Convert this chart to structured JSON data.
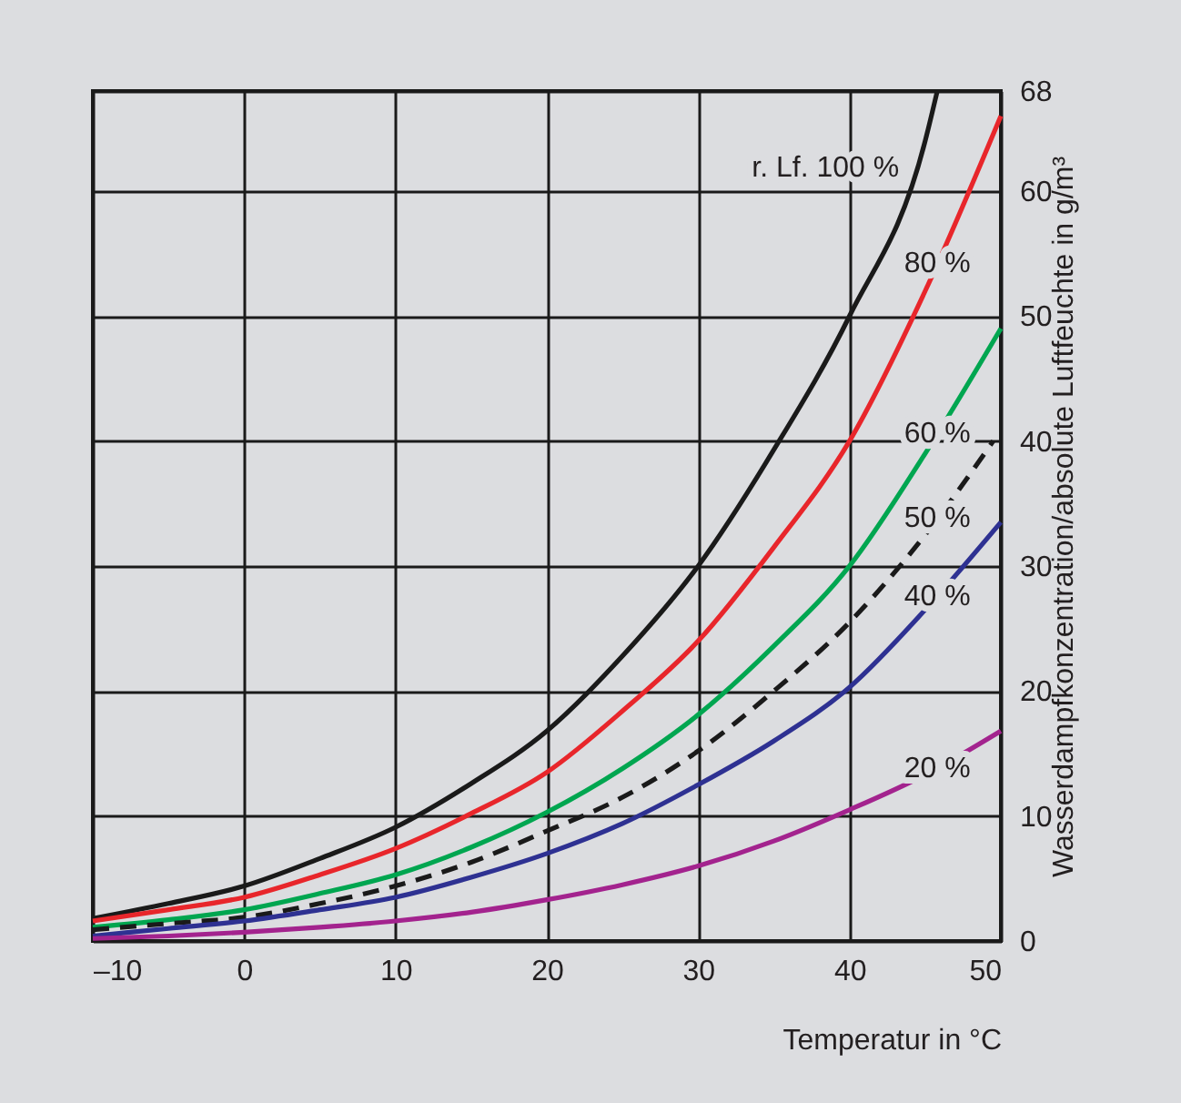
{
  "chart_data": {
    "type": "line",
    "xlabel": "Temperatur in °C",
    "ylabel": "Wasserdampfkonzentration/absolute Luftfeuchte in g/m³",
    "x": [
      -10,
      -5,
      0,
      5,
      10,
      15,
      20,
      25,
      30,
      35,
      40,
      45,
      50
    ],
    "xlim": [
      -10,
      50
    ],
    "xticks": [
      {
        "value": -10,
        "label": "–10"
      },
      0,
      10,
      20,
      30,
      40,
      50
    ],
    "ylim": [
      0,
      68
    ],
    "yticks": [
      0,
      10,
      20,
      30,
      40,
      50,
      60,
      68
    ],
    "grid": true,
    "line_style": "solid",
    "series": [
      {
        "name": "r. Lf. 100 %",
        "color": "#1a1a1a",
        "x": [
          -10,
          -5,
          0,
          5,
          10,
          15,
          20,
          25,
          30,
          35,
          40,
          45,
          45.8
        ],
        "values": [
          1.8,
          3.0,
          4.4,
          6.6,
          9.1,
          12.6,
          16.8,
          22.8,
          30,
          39.3,
          50,
          64,
          68
        ]
      },
      {
        "name": "80 %",
        "color": "#e8262b",
        "values": [
          1.6,
          2.5,
          3.5,
          5.3,
          7.4,
          10.2,
          13.5,
          18.4,
          24,
          31.5,
          40,
          52,
          66
        ]
      },
      {
        "name": "60 %",
        "color": "#00a650",
        "values": [
          1.1,
          1.7,
          2.5,
          3.8,
          5.3,
          7.5,
          10.3,
          13.8,
          18.1,
          23.6,
          30,
          39,
          49
        ]
      },
      {
        "name": "50 %",
        "color": "#1a1a1a",
        "line_style": "dashed",
        "x": [
          -10,
          -5,
          0,
          5,
          10,
          15,
          20,
          25,
          30,
          35,
          40,
          45,
          49.5
        ],
        "values": [
          0.9,
          1.4,
          1.9,
          3.0,
          4.4,
          6.3,
          8.8,
          11.5,
          15.2,
          20,
          25.5,
          32.5,
          40
        ]
      },
      {
        "name": "40 %",
        "color": "#2e3192",
        "values": [
          0.4,
          1.0,
          1.6,
          2.5,
          3.5,
          5.1,
          7.0,
          9.4,
          12.5,
          16,
          20.3,
          26.5,
          33.5
        ]
      },
      {
        "name": "20 %",
        "color": "#a3238e",
        "values": [
          0.2,
          0.4,
          0.7,
          1.1,
          1.6,
          2.3,
          3.3,
          4.5,
          6.0,
          8.0,
          10.5,
          13.3,
          16.8
        ]
      }
    ]
  }
}
